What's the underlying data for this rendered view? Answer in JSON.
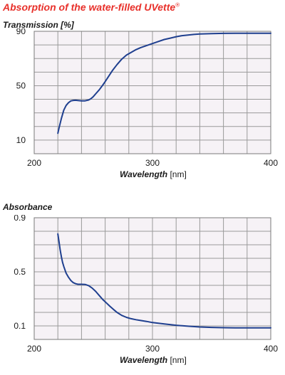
{
  "title": "Absorption of the water-filled UVette",
  "title_mark": "®",
  "chart_data": [
    {
      "type": "line",
      "ylabel": "Transmission [%]",
      "xlabel": "Wavelength",
      "xunit": "[nm]",
      "xlim": [
        200,
        400
      ],
      "ylim": [
        0,
        90
      ],
      "xticks": [
        200,
        300,
        400
      ],
      "yticks": [
        10,
        50,
        90
      ],
      "grid": true,
      "grid_color": "#9a9a9a",
      "plot_bg": "#f6f2f6",
      "line_color": "#1f3f8f",
      "series": [
        {
          "x": [
            220,
            221,
            223,
            225,
            227,
            229,
            231,
            233,
            235,
            237,
            240,
            243,
            246,
            248,
            250,
            252,
            255,
            258,
            260,
            263,
            266,
            270,
            274,
            278,
            282,
            286,
            290,
            295,
            300,
            305,
            310,
            315,
            320,
            325,
            330,
            335,
            340,
            350,
            360,
            370,
            380,
            390,
            400
          ],
          "y": [
            15,
            19,
            26,
            32,
            35.5,
            37.5,
            38.8,
            39.2,
            39.3,
            39.1,
            38.8,
            38.9,
            39.5,
            40.5,
            42,
            44,
            47,
            50.5,
            53,
            57,
            61,
            65.5,
            69.5,
            72.5,
            74.5,
            76.5,
            78,
            79.5,
            81,
            82.5,
            84,
            85,
            86,
            86.8,
            87.3,
            87.7,
            88,
            88.3,
            88.5,
            88.6,
            88.6,
            88.6,
            88.6
          ]
        }
      ]
    },
    {
      "type": "line",
      "ylabel": "Absorbance",
      "xlabel": "Wavelength",
      "xunit": "[nm]",
      "xlim": [
        200,
        400
      ],
      "ylim": [
        0,
        0.9
      ],
      "xticks": [
        200,
        300,
        400
      ],
      "yticks": [
        0.1,
        0.5,
        0.9
      ],
      "grid": true,
      "grid_color": "#9a9a9a",
      "plot_bg": "#f6f2f6",
      "line_color": "#1f3f8f",
      "series": [
        {
          "x": [
            220,
            221,
            222,
            223,
            224,
            225,
            227,
            229,
            231,
            233,
            235,
            237,
            240,
            243,
            246,
            249,
            252,
            255,
            258,
            261,
            264,
            267,
            270,
            274,
            278,
            282,
            286,
            290,
            295,
            300,
            310,
            320,
            330,
            340,
            350,
            360,
            370,
            380,
            390,
            400
          ],
          "y": [
            0.78,
            0.72,
            0.66,
            0.61,
            0.57,
            0.54,
            0.49,
            0.46,
            0.435,
            0.42,
            0.412,
            0.408,
            0.408,
            0.407,
            0.398,
            0.38,
            0.355,
            0.325,
            0.295,
            0.27,
            0.245,
            0.222,
            0.2,
            0.178,
            0.163,
            0.153,
            0.146,
            0.14,
            0.133,
            0.125,
            0.114,
            0.105,
            0.098,
            0.092,
            0.089,
            0.087,
            0.086,
            0.085,
            0.085,
            0.085
          ]
        }
      ]
    }
  ]
}
